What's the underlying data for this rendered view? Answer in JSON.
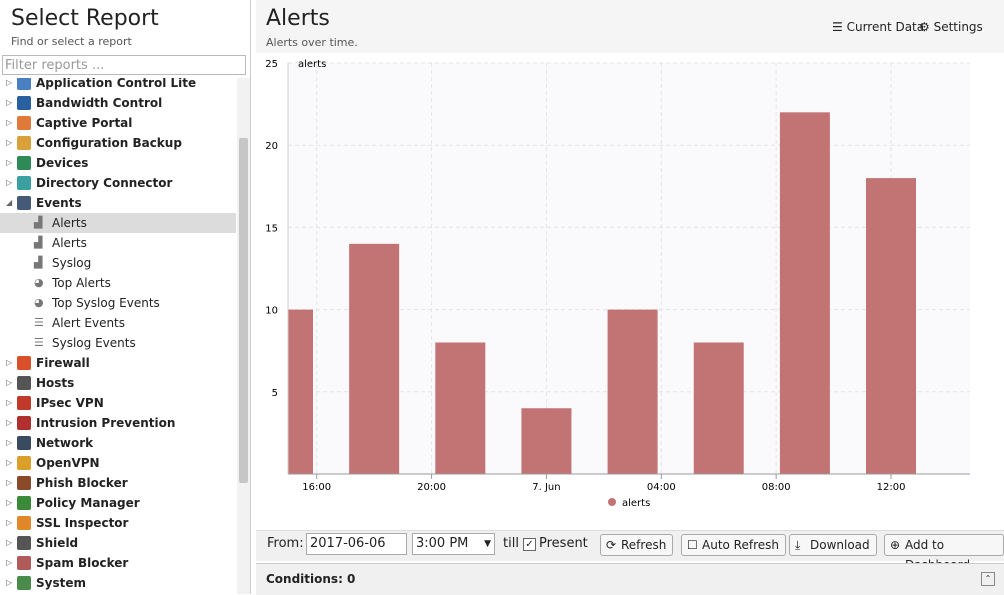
{
  "sidebar": {
    "title": "Select Report",
    "subtitle": "Find or select a report",
    "filter_placeholder": "Filter reports ...",
    "tree": [
      {
        "label": "Application Control Lite",
        "level": 0
      },
      {
        "label": "Bandwidth Control",
        "level": 0
      },
      {
        "label": "Captive Portal",
        "level": 0
      },
      {
        "label": "Configuration Backup",
        "level": 0
      },
      {
        "label": "Devices",
        "level": 0
      },
      {
        "label": "Directory Connector",
        "level": 0
      },
      {
        "label": "Events",
        "level": 0,
        "expanded": true
      },
      {
        "label": "Alerts",
        "level": 1,
        "icon": "bar",
        "selected": true
      },
      {
        "label": "Alerts",
        "level": 1,
        "icon": "bar"
      },
      {
        "label": "Syslog",
        "level": 1,
        "icon": "bar"
      },
      {
        "label": "Top Alerts",
        "level": 1,
        "icon": "pie"
      },
      {
        "label": "Top Syslog Events",
        "level": 1,
        "icon": "pie"
      },
      {
        "label": "Alert Events",
        "level": 1,
        "icon": "list"
      },
      {
        "label": "Syslog Events",
        "level": 1,
        "icon": "list"
      },
      {
        "label": "Firewall",
        "level": 0
      },
      {
        "label": "Hosts",
        "level": 0
      },
      {
        "label": "IPsec VPN",
        "level": 0
      },
      {
        "label": "Intrusion Prevention",
        "level": 0
      },
      {
        "label": "Network",
        "level": 0
      },
      {
        "label": "OpenVPN",
        "level": 0
      },
      {
        "label": "Phish Blocker",
        "level": 0
      },
      {
        "label": "Policy Manager",
        "level": 0
      },
      {
        "label": "SSL Inspector",
        "level": 0
      },
      {
        "label": "Shield",
        "level": 0
      },
      {
        "label": "Spam Blocker",
        "level": 0
      },
      {
        "label": "System",
        "level": 0
      }
    ]
  },
  "header": {
    "title": "Alerts",
    "subtitle": "Alerts over time.",
    "buttons": [
      "Current Data",
      "Settings"
    ]
  },
  "chart_data": {
    "type": "bar",
    "y_label": "alerts",
    "x": [
      "2017-06-06T15:00",
      "2017-06-06T18:00",
      "2017-06-06T21:00",
      "2017-06-07T00:00",
      "2017-06-07T03:00",
      "2017-06-07T06:00",
      "2017-06-07T09:00",
      "2017-06-07T12:00"
    ],
    "series": [
      {
        "name": "alerts",
        "color": "#c27374",
        "values": [
          10,
          14,
          8,
          4,
          10,
          8,
          22,
          18
        ]
      }
    ],
    "xlim": [
      "2017-06-06T15:00",
      "2017-06-07T14:45"
    ],
    "xticks": [
      {
        "value": "2017-06-06T16:00",
        "label": "16:00"
      },
      {
        "value": "2017-06-06T20:00",
        "label": "20:00"
      },
      {
        "value": "2017-06-07T00:00",
        "label": "7. Jun"
      },
      {
        "value": "2017-06-07T04:00",
        "label": "04:00"
      },
      {
        "value": "2017-06-07T08:00",
        "label": "08:00"
      },
      {
        "value": "2017-06-07T12:00",
        "label": "12:00"
      }
    ],
    "ylim": [
      0,
      25
    ],
    "yticks": [
      5,
      10,
      15,
      20,
      25
    ],
    "grid": true,
    "legend": "bottom"
  },
  "toolbar": {
    "from_label": "From:",
    "date": "2017-06-06",
    "time": "3:00 PM",
    "till_label": "till",
    "present_label": "Present",
    "present_checked": true,
    "buttons": [
      "Refresh",
      "Auto Refresh",
      "Download",
      "Add to Dashboard"
    ]
  },
  "footer": {
    "conditions": "Conditions: 0"
  }
}
